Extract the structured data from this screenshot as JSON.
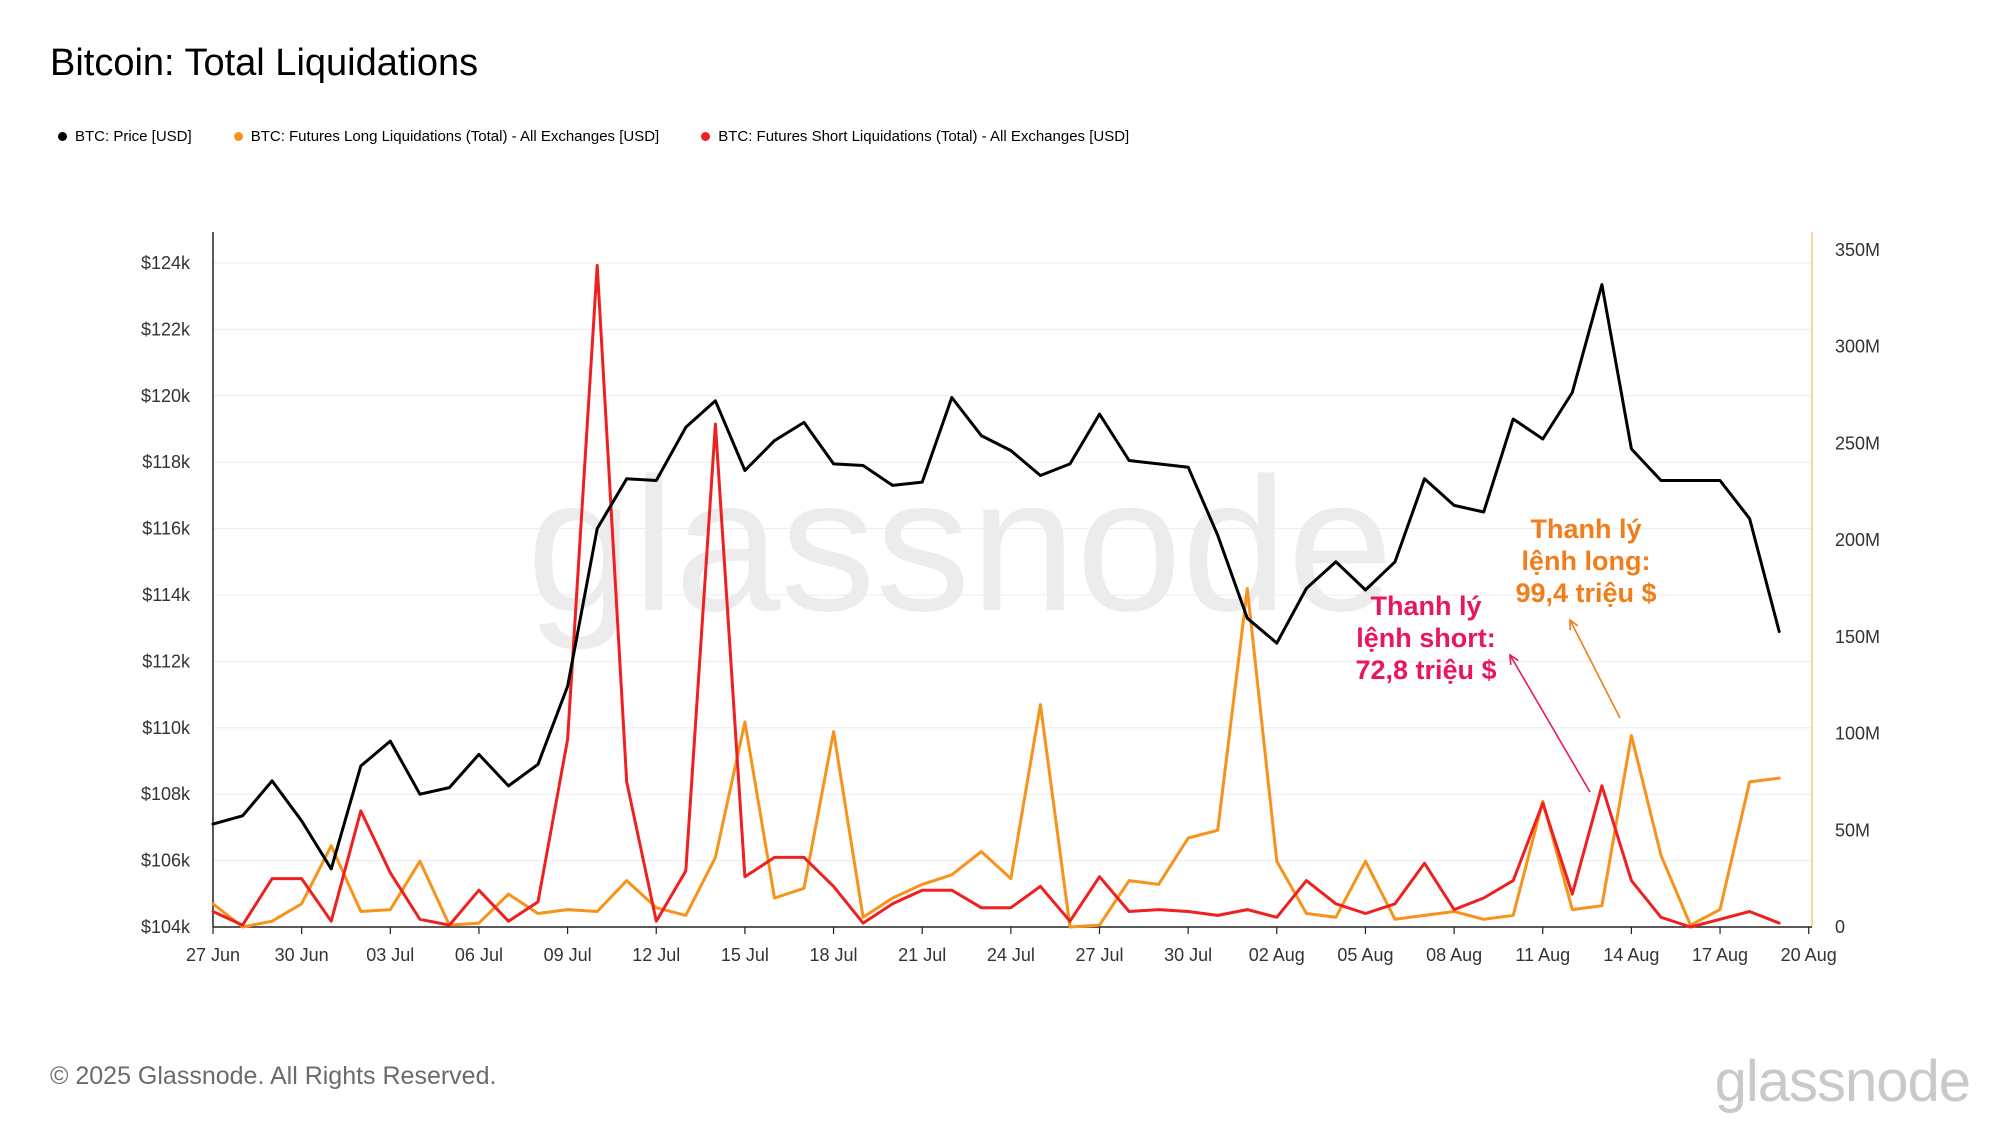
{
  "title": "Bitcoin: Total Liquidations",
  "legend": [
    {
      "label": "BTC: Price [USD]",
      "color": "#000000"
    },
    {
      "label": "BTC: Futures Long Liquidations (Total) - All Exchanges [USD]",
      "color": "#f7931a"
    },
    {
      "label": "BTC: Futures Short Liquidations (Total) - All Exchanges [USD]",
      "color": "#ef2020"
    }
  ],
  "annotations": {
    "short": {
      "line1": "Thanh lý",
      "line2": "lệnh short:",
      "line3": "72,8 triệu $",
      "color": "#e8175d"
    },
    "long": {
      "line1": "Thanh lý",
      "line2": "lệnh long:",
      "line3": "99,4 triệu $",
      "color": "#f07e1a"
    }
  },
  "watermark": "glassnode",
  "footer": {
    "copyright": "© 2025 Glassnode. All Rights Reserved.",
    "logo": "glassnode"
  },
  "chart_data": {
    "type": "line",
    "title": "Bitcoin: Total Liquidations",
    "x": [
      "27 Jun",
      "28 Jun",
      "29 Jun",
      "30 Jun",
      "01 Jul",
      "02 Jul",
      "03 Jul",
      "04 Jul",
      "05 Jul",
      "06 Jul",
      "07 Jul",
      "08 Jul",
      "09 Jul",
      "10 Jul",
      "11 Jul",
      "12 Jul",
      "13 Jul",
      "14 Jul",
      "15 Jul",
      "16 Jul",
      "17 Jul",
      "18 Jul",
      "19 Jul",
      "20 Jul",
      "21 Jul",
      "22 Jul",
      "23 Jul",
      "24 Jul",
      "25 Jul",
      "26 Jul",
      "27 Jul",
      "28 Jul",
      "29 Jul",
      "30 Jul",
      "31 Jul",
      "01 Aug",
      "02 Aug",
      "03 Aug",
      "04 Aug",
      "05 Aug",
      "06 Aug",
      "07 Aug",
      "08 Aug",
      "09 Aug",
      "10 Aug",
      "11 Aug",
      "12 Aug",
      "13 Aug",
      "14 Aug",
      "15 Aug",
      "16 Aug",
      "17 Aug",
      "18 Aug",
      "19 Aug"
    ],
    "x_ticks": [
      "27 Jun",
      "30 Jun",
      "03 Jul",
      "06 Jul",
      "09 Jul",
      "12 Jul",
      "15 Jul",
      "18 Jul",
      "21 Jul",
      "24 Jul",
      "27 Jul",
      "30 Jul",
      "02 Aug",
      "05 Aug",
      "08 Aug",
      "11 Aug",
      "14 Aug",
      "17 Aug",
      "20 Aug"
    ],
    "y_left": {
      "ticks": [
        "$104k",
        "$106k",
        "$108k",
        "$110k",
        "$112k",
        "$114k",
        "$116k",
        "$118k",
        "$120k",
        "$122k",
        "$124k"
      ],
      "range": [
        104000,
        124000
      ]
    },
    "y_right": {
      "ticks": [
        "0",
        "50M",
        "100M",
        "150M",
        "200M",
        "250M",
        "300M",
        "350M"
      ],
      "range": [
        0,
        350
      ]
    },
    "series": [
      {
        "name": "BTC: Price [USD]",
        "axis": "left",
        "color": "#000000",
        "values": [
          107100,
          107350,
          108400,
          107200,
          105750,
          108850,
          109600,
          108000,
          108200,
          109200,
          108250,
          108900,
          111250,
          116000,
          117500,
          117450,
          119050,
          119850,
          117750,
          118650,
          119200,
          117950,
          117900,
          117300,
          117400,
          119950,
          118800,
          118350,
          117600,
          117950,
          119450,
          118050,
          117950,
          117850,
          115800,
          113300,
          112550,
          114200,
          115000,
          114150,
          115000,
          117500,
          116700,
          116500,
          119300,
          118700,
          120100,
          123350,
          118400,
          117450,
          117450,
          117450,
          116300,
          112900
        ]
      },
      {
        "name": "BTC: Futures Long Liquidations (Total) - All Exchanges [USD]",
        "axis": "right",
        "color": "#f7931a",
        "values": [
          12,
          0,
          3,
          12,
          42,
          8,
          9,
          34,
          1,
          2,
          17,
          7,
          9,
          8,
          24,
          10,
          6,
          36,
          106,
          15,
          20,
          101,
          5,
          15,
          22,
          27,
          39,
          25,
          115,
          0,
          1,
          24,
          22,
          46,
          50,
          175,
          34,
          7,
          5,
          34,
          4,
          6,
          8,
          4,
          6,
          65,
          9,
          11,
          99,
          37,
          1,
          9,
          75,
          77
        ]
      },
      {
        "name": "BTC: Futures Short Liquidations (Total) - All Exchanges [USD]",
        "axis": "right",
        "color": "#ef2020",
        "values": [
          8,
          1,
          25,
          25,
          3,
          60,
          28,
          4,
          1,
          19,
          3,
          13,
          97,
          342,
          75,
          3,
          29,
          260,
          26,
          36,
          36,
          21,
          2,
          12,
          19,
          19,
          10,
          10,
          21,
          3,
          26,
          8,
          9,
          8,
          6,
          9,
          5,
          24,
          12,
          7,
          12,
          33,
          9,
          15,
          24,
          64,
          17,
          73,
          24,
          5,
          0,
          4,
          8,
          2
        ]
      }
    ]
  }
}
